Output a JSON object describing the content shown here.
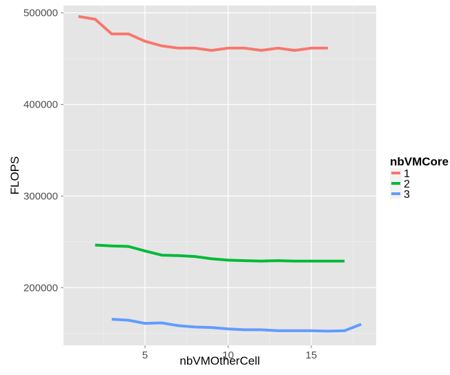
{
  "chart_data": {
    "type": "line",
    "xlabel": "nbVMOtherCell",
    "ylabel": "FLOPS",
    "xlim": [
      0.1,
      18.9
    ],
    "ylim": [
      137000,
      508000
    ],
    "x_ticks": [
      5,
      10,
      15
    ],
    "x_tick_labels": [
      "5",
      "10",
      "15"
    ],
    "y_ticks": [
      200000,
      300000,
      400000,
      500000
    ],
    "y_tick_labels": [
      "200000",
      "300000",
      "400000",
      "500000"
    ],
    "grid": true,
    "legend": {
      "title": "nbVMCore",
      "position": "right"
    },
    "series": [
      {
        "name": "1",
        "color": "#F8766D",
        "x": [
          1,
          2,
          3,
          4,
          5,
          6,
          7,
          8,
          9,
          10,
          11,
          12,
          13,
          14,
          15,
          16
        ],
        "y": [
          496000,
          493000,
          477000,
          477000,
          469000,
          464000,
          461500,
          461500,
          459000,
          461500,
          461500,
          459000,
          461500,
          459000,
          461500,
          461500
        ]
      },
      {
        "name": "2",
        "color": "#00BA38",
        "x": [
          2,
          3,
          4,
          5,
          6,
          7,
          8,
          9,
          10,
          11,
          12,
          13,
          14,
          15,
          16,
          17
        ],
        "y": [
          246500,
          245500,
          245000,
          240000,
          235500,
          235000,
          234000,
          231500,
          230000,
          229500,
          229000,
          229500,
          229000,
          229000,
          229000,
          229000
        ]
      },
      {
        "name": "3",
        "color": "#619CFF",
        "x": [
          3,
          4,
          5,
          6,
          7,
          8,
          9,
          10,
          11,
          12,
          13,
          14,
          15,
          16,
          17,
          18
        ],
        "y": [
          165500,
          164500,
          161000,
          161500,
          158500,
          157000,
          156500,
          155000,
          154000,
          154000,
          153000,
          153000,
          153000,
          152500,
          153000,
          160000
        ]
      }
    ]
  }
}
